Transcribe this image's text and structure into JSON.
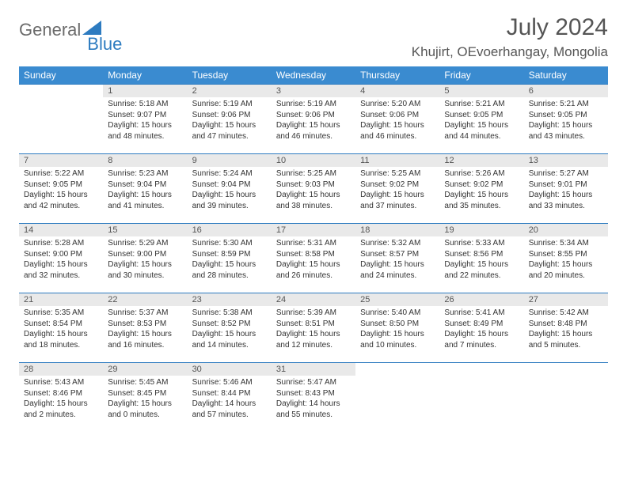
{
  "logo": {
    "general": "General",
    "blue": "Blue"
  },
  "title": "July 2024",
  "location": "Khujirt, OEvoerhangay, Mongolia",
  "colors": {
    "header_bg": "#3a8bd0",
    "border": "#2d7bc0",
    "daynum_bg": "#e9e9e9",
    "text": "#333333",
    "title_text": "#555555"
  },
  "fonts": {
    "title_size": 30,
    "location_size": 17,
    "dow_size": 12,
    "daynum_size": 11,
    "body_size": 10
  },
  "dow": [
    "Sunday",
    "Monday",
    "Tuesday",
    "Wednesday",
    "Thursday",
    "Friday",
    "Saturday"
  ],
  "weeks": [
    [
      null,
      {
        "n": "1",
        "sr": "5:18 AM",
        "ss": "9:07 PM",
        "dl": "15 hours and 48 minutes."
      },
      {
        "n": "2",
        "sr": "5:19 AM",
        "ss": "9:06 PM",
        "dl": "15 hours and 47 minutes."
      },
      {
        "n": "3",
        "sr": "5:19 AM",
        "ss": "9:06 PM",
        "dl": "15 hours and 46 minutes."
      },
      {
        "n": "4",
        "sr": "5:20 AM",
        "ss": "9:06 PM",
        "dl": "15 hours and 46 minutes."
      },
      {
        "n": "5",
        "sr": "5:21 AM",
        "ss": "9:05 PM",
        "dl": "15 hours and 44 minutes."
      },
      {
        "n": "6",
        "sr": "5:21 AM",
        "ss": "9:05 PM",
        "dl": "15 hours and 43 minutes."
      }
    ],
    [
      {
        "n": "7",
        "sr": "5:22 AM",
        "ss": "9:05 PM",
        "dl": "15 hours and 42 minutes."
      },
      {
        "n": "8",
        "sr": "5:23 AM",
        "ss": "9:04 PM",
        "dl": "15 hours and 41 minutes."
      },
      {
        "n": "9",
        "sr": "5:24 AM",
        "ss": "9:04 PM",
        "dl": "15 hours and 39 minutes."
      },
      {
        "n": "10",
        "sr": "5:25 AM",
        "ss": "9:03 PM",
        "dl": "15 hours and 38 minutes."
      },
      {
        "n": "11",
        "sr": "5:25 AM",
        "ss": "9:02 PM",
        "dl": "15 hours and 37 minutes."
      },
      {
        "n": "12",
        "sr": "5:26 AM",
        "ss": "9:02 PM",
        "dl": "15 hours and 35 minutes."
      },
      {
        "n": "13",
        "sr": "5:27 AM",
        "ss": "9:01 PM",
        "dl": "15 hours and 33 minutes."
      }
    ],
    [
      {
        "n": "14",
        "sr": "5:28 AM",
        "ss": "9:00 PM",
        "dl": "15 hours and 32 minutes."
      },
      {
        "n": "15",
        "sr": "5:29 AM",
        "ss": "9:00 PM",
        "dl": "15 hours and 30 minutes."
      },
      {
        "n": "16",
        "sr": "5:30 AM",
        "ss": "8:59 PM",
        "dl": "15 hours and 28 minutes."
      },
      {
        "n": "17",
        "sr": "5:31 AM",
        "ss": "8:58 PM",
        "dl": "15 hours and 26 minutes."
      },
      {
        "n": "18",
        "sr": "5:32 AM",
        "ss": "8:57 PM",
        "dl": "15 hours and 24 minutes."
      },
      {
        "n": "19",
        "sr": "5:33 AM",
        "ss": "8:56 PM",
        "dl": "15 hours and 22 minutes."
      },
      {
        "n": "20",
        "sr": "5:34 AM",
        "ss": "8:55 PM",
        "dl": "15 hours and 20 minutes."
      }
    ],
    [
      {
        "n": "21",
        "sr": "5:35 AM",
        "ss": "8:54 PM",
        "dl": "15 hours and 18 minutes."
      },
      {
        "n": "22",
        "sr": "5:37 AM",
        "ss": "8:53 PM",
        "dl": "15 hours and 16 minutes."
      },
      {
        "n": "23",
        "sr": "5:38 AM",
        "ss": "8:52 PM",
        "dl": "15 hours and 14 minutes."
      },
      {
        "n": "24",
        "sr": "5:39 AM",
        "ss": "8:51 PM",
        "dl": "15 hours and 12 minutes."
      },
      {
        "n": "25",
        "sr": "5:40 AM",
        "ss": "8:50 PM",
        "dl": "15 hours and 10 minutes."
      },
      {
        "n": "26",
        "sr": "5:41 AM",
        "ss": "8:49 PM",
        "dl": "15 hours and 7 minutes."
      },
      {
        "n": "27",
        "sr": "5:42 AM",
        "ss": "8:48 PM",
        "dl": "15 hours and 5 minutes."
      }
    ],
    [
      {
        "n": "28",
        "sr": "5:43 AM",
        "ss": "8:46 PM",
        "dl": "15 hours and 2 minutes."
      },
      {
        "n": "29",
        "sr": "5:45 AM",
        "ss": "8:45 PM",
        "dl": "15 hours and 0 minutes."
      },
      {
        "n": "30",
        "sr": "5:46 AM",
        "ss": "8:44 PM",
        "dl": "14 hours and 57 minutes."
      },
      {
        "n": "31",
        "sr": "5:47 AM",
        "ss": "8:43 PM",
        "dl": "14 hours and 55 minutes."
      },
      null,
      null,
      null
    ]
  ],
  "labels": {
    "sunrise": "Sunrise:",
    "sunset": "Sunset:",
    "daylight": "Daylight:"
  }
}
